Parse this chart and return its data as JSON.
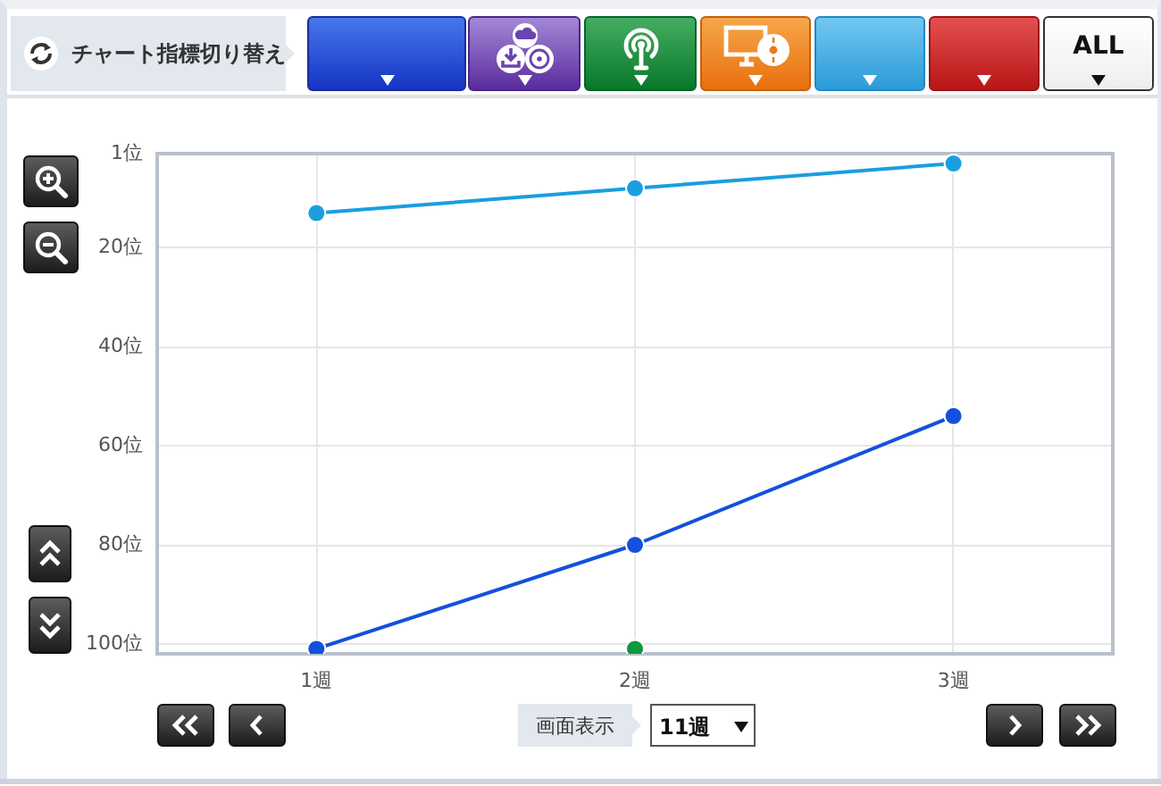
{
  "chart_data": {
    "type": "line",
    "categories": [
      "1週",
      "2週",
      "3週"
    ],
    "series": [
      {
        "color": "#1a9ee0",
        "values": [
          13,
          8,
          3
        ]
      },
      {
        "color": "#1450dc",
        "values": [
          101,
          80,
          54
        ]
      },
      {
        "color": "#0c9a3c",
        "values": [
          null,
          101,
          null
        ]
      }
    ],
    "ylim": [
      102,
      1
    ],
    "yticks": [
      {
        "value": 1,
        "label": "1位"
      },
      {
        "value": 20,
        "label": "20位"
      },
      {
        "value": 40,
        "label": "40位"
      },
      {
        "value": 60,
        "label": "60位"
      },
      {
        "value": 80,
        "label": "80位"
      },
      {
        "value": 100,
        "label": "100位"
      }
    ],
    "grid": true,
    "legend": false,
    "marker": "circle",
    "line_style": "solid",
    "annotations": [
      "チャート指標切り替え",
      "ALL",
      "画面表示",
      "11週"
    ]
  }
}
